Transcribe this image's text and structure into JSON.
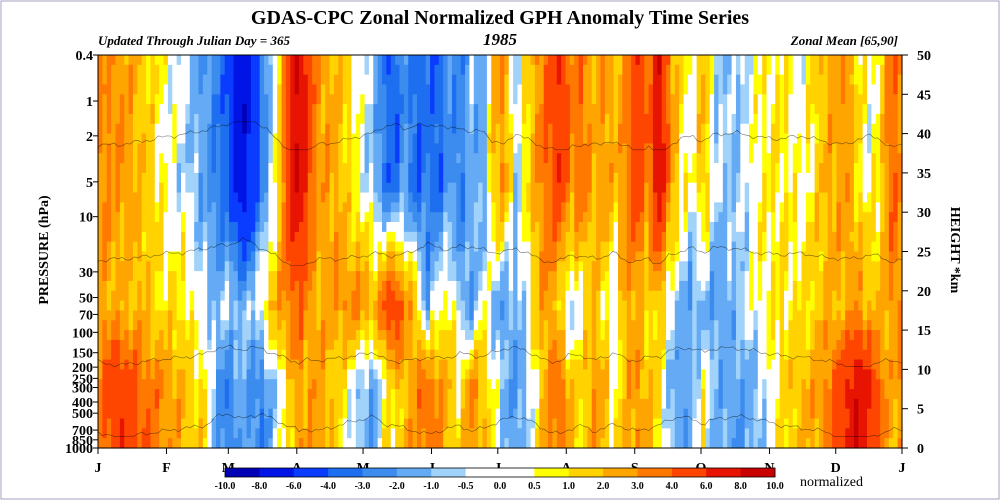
{
  "chart_data": {
    "type": "heatmap",
    "title": "GDAS-CPC Zonal Normalized GPH Anomaly Time Series",
    "subtitle_left": "Updated Through Julian Day = 365",
    "subtitle_center": "1985",
    "subtitle_right": "Zonal Mean [65,90]",
    "ylabel_left": "PRESSURE (hPa)",
    "ylabel_right": "HEIGHT *km",
    "y_scale": "log",
    "y_range_hPa": [
      1000,
      0.4
    ],
    "pressure_ticks": [
      "0.4",
      "1",
      "2",
      "5",
      "10",
      "30",
      "50",
      "70",
      "100",
      "150",
      "200",
      "250",
      "300",
      "400",
      "500",
      "700",
      "850",
      "1000"
    ],
    "pressure_tick_values": [
      0.4,
      1,
      2,
      5,
      10,
      30,
      50,
      70,
      100,
      150,
      200,
      250,
      300,
      400,
      500,
      700,
      850,
      1000
    ],
    "height_ticks": [
      "0",
      "5",
      "10",
      "15",
      "20",
      "25",
      "30",
      "35",
      "40",
      "45",
      "50"
    ],
    "height_tick_values": [
      0,
      5,
      10,
      15,
      20,
      25,
      30,
      35,
      40,
      45,
      50
    ],
    "x_range_day": [
      1,
      365
    ],
    "month_labels": [
      "J",
      "F",
      "M",
      "A",
      "M",
      "J",
      "J",
      "A",
      "S",
      "O",
      "N",
      "D",
      "J"
    ],
    "month_start_days": [
      1,
      32,
      60,
      91,
      121,
      152,
      182,
      213,
      244,
      274,
      305,
      335,
      365
    ],
    "colorbar_ticks": [
      "-10.0",
      "-8.0",
      "-6.0",
      "-4.0",
      "-3.0",
      "-2.0",
      "-1.0",
      "-0.5",
      "0.0",
      "0.5",
      "1.0",
      "2.0",
      "3.0",
      "4.0",
      "6.0",
      "8.0",
      "10.0"
    ],
    "colorbar_colors": [
      "#0000b4",
      "#0014e6",
      "#0a3cff",
      "#1e6ef0",
      "#3c8cf0",
      "#64aaf5",
      "#a0d2fa",
      "#ffffff",
      "#ffffff",
      "#ffff00",
      "#ffd200",
      "#ffa500",
      "#ff7800",
      "#ff4600",
      "#e61400",
      "#c80000"
    ],
    "colorbar_label": "normalized",
    "anomaly_profile": {
      "days": [
        1,
        10,
        20,
        30,
        40,
        50,
        55,
        60,
        66,
        70,
        75,
        80,
        85,
        90,
        92,
        95,
        100,
        110,
        120,
        126,
        130,
        135,
        140,
        145,
        150,
        155,
        160,
        165,
        170,
        175,
        180,
        185,
        190,
        195,
        200,
        205,
        210,
        215,
        220,
        225,
        230,
        235,
        240,
        245,
        250,
        255,
        260,
        265,
        270,
        275,
        280,
        290,
        300,
        310,
        320,
        330,
        340,
        345,
        350,
        355,
        360,
        365
      ],
      "upper_strat": [
        3.0,
        3.0,
        2.0,
        0.5,
        -0.5,
        -2.0,
        -3.0,
        -4.0,
        -8.0,
        -6.0,
        -3.0,
        -0.5,
        3.0,
        8.0,
        8.0,
        6.0,
        3.0,
        2.0,
        0.0,
        -1.0,
        -3.0,
        -4.0,
        -2.0,
        -4.0,
        -3.0,
        -4.0,
        -2.0,
        -3.0,
        -1.0,
        -2.0,
        2.0,
        3.0,
        -1.0,
        1.0,
        3.0,
        4.0,
        6.0,
        3.0,
        4.0,
        2.0,
        3.0,
        2.0,
        3.0,
        6.0,
        3.0,
        8.0,
        3.0,
        1.0,
        0.0,
        2.0,
        -0.5,
        -1.0,
        0.5,
        1.0,
        0.0,
        2.0,
        3.0,
        1.0,
        0.0,
        1.0,
        4.0,
        3.0
      ],
      "lower_strat": [
        3.0,
        2.0,
        2.0,
        1.0,
        1.0,
        -0.5,
        -1.0,
        -0.5,
        -1.0,
        -1.0,
        0.5,
        2.0,
        3.0,
        4.0,
        4.0,
        3.0,
        2.0,
        3.0,
        3.0,
        2.0,
        4.0,
        6.0,
        3.0,
        2.0,
        -2.0,
        0.5,
        1.0,
        -1.0,
        -2.0,
        0.5,
        -1.0,
        -2.0,
        -1.0,
        -0.5,
        2.0,
        3.0,
        1.0,
        -1.0,
        0.5,
        2.0,
        1.0,
        -1.0,
        3.0,
        2.0,
        1.0,
        2.0,
        -0.5,
        -1.0,
        -2.0,
        -1.0,
        -2.0,
        -1.0,
        0.5,
        1.0,
        1.0,
        2.0,
        2.0,
        3.0,
        2.0,
        2.0,
        3.0,
        3.0
      ],
      "troposphere": [
        3.0,
        6.0,
        4.0,
        3.0,
        2.0,
        1.0,
        -2.0,
        -3.0,
        -1.0,
        -2.0,
        -3.0,
        -1.0,
        0.5,
        2.0,
        3.0,
        2.0,
        3.0,
        1.0,
        -1.0,
        -2.0,
        0.5,
        1.0,
        2.0,
        3.0,
        4.0,
        3.0,
        2.0,
        1.0,
        3.0,
        2.0,
        0.5,
        -1.0,
        -2.0,
        -1.0,
        1.0,
        3.0,
        4.0,
        2.0,
        1.0,
        3.0,
        2.0,
        0.5,
        2.0,
        3.0,
        2.0,
        1.0,
        -1.0,
        -2.0,
        -1.0,
        0.5,
        -1.0,
        -2.0,
        -1.0,
        1.0,
        2.0,
        3.0,
        6.0,
        8.0,
        6.0,
        4.0,
        2.0,
        3.0
      ]
    }
  }
}
